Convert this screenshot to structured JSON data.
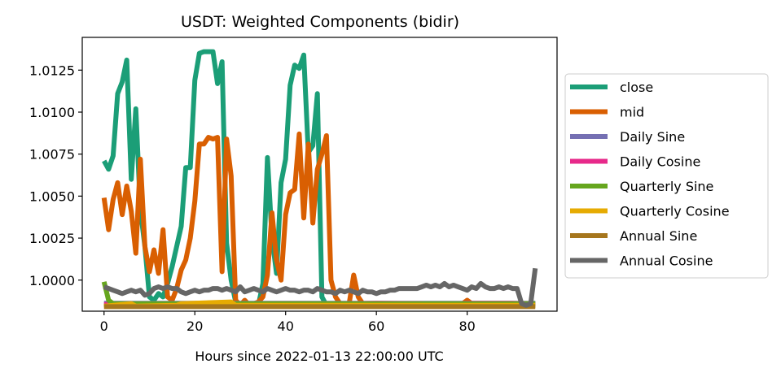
{
  "chart_data": {
    "type": "line",
    "title": "USDT: Weighted Components (bidir)",
    "xlabel": "Hours since 2022-01-13 22:00:00 UTC",
    "ylabel": "",
    "xlim": [
      -4.8,
      99.8
    ],
    "ylim": [
      0.99815,
      1.01445
    ],
    "xticks": [
      0,
      20,
      40,
      60,
      80
    ],
    "yticks": [
      1.0,
      1.0025,
      1.005,
      1.0075,
      1.01,
      1.0125
    ],
    "ytick_labels": [
      "1.0000",
      "1.0025",
      "1.0050",
      "1.0075",
      "1.0100",
      "1.0125"
    ],
    "grid": false,
    "legend_position": "right",
    "series": [
      {
        "name": "close",
        "color": "#1b9e77",
        "x": [
          0,
          1,
          2,
          3,
          4,
          5,
          6,
          7,
          8,
          9,
          10,
          11,
          12,
          13,
          14,
          15,
          16,
          17,
          18,
          19,
          20,
          21,
          22,
          23,
          24,
          25,
          26,
          27,
          28,
          29,
          30,
          31,
          32,
          33,
          34,
          35,
          36,
          37,
          38,
          39,
          40,
          41,
          42,
          43,
          44,
          45,
          46,
          47,
          48,
          49,
          50,
          51,
          52,
          53,
          54,
          55,
          56,
          57,
          58,
          59,
          60,
          61,
          62,
          63,
          64,
          65,
          66,
          67,
          68,
          69,
          70,
          71,
          72,
          73,
          74,
          75,
          76,
          77,
          78,
          79,
          80,
          81,
          82,
          83,
          84,
          85,
          86,
          87,
          88,
          89,
          90,
          91,
          92,
          93,
          94,
          95
        ],
        "values": [
          1.0071,
          1.0066,
          1.0074,
          1.0111,
          1.0118,
          1.0131,
          1.006,
          1.0102,
          1.0042,
          1.002,
          0.999,
          0.9988,
          0.9992,
          0.999,
          0.9998,
          1.0008,
          1.002,
          1.0032,
          1.0067,
          1.0067,
          1.0119,
          1.0135,
          1.0136,
          1.0136,
          1.0136,
          1.0117,
          1.013,
          1.0022,
          1.0,
          0.9987,
          0.9985,
          0.9985,
          0.9985,
          0.9985,
          0.9985,
          0.9998,
          1.0073,
          1.0025,
          1.0004,
          1.0058,
          1.0072,
          1.0116,
          1.0128,
          1.0126,
          1.0134,
          1.0076,
          1.008,
          1.0111,
          0.999,
          0.9985,
          0.9985,
          0.9985,
          0.9985,
          0.9985,
          0.9985,
          0.9985,
          0.9985,
          0.9985,
          0.9985,
          0.9985,
          0.9985,
          0.9985,
          0.9985,
          0.9985,
          0.9985,
          0.9985,
          0.9985,
          0.9985,
          0.9985,
          0.9985,
          0.9985,
          0.9985,
          0.9985,
          0.9985,
          0.9985,
          0.9985,
          0.9985,
          0.9985,
          0.9985,
          0.9985,
          0.9985,
          0.9985,
          0.9985,
          0.9985,
          0.9985,
          0.9985,
          0.9985,
          0.9985,
          0.9985,
          0.9985,
          0.9985,
          0.9985,
          0.9985,
          0.9985,
          0.9985,
          0.9985
        ]
      },
      {
        "name": "mid",
        "color": "#d95f02",
        "x": [
          0,
          1,
          2,
          3,
          4,
          5,
          6,
          7,
          8,
          9,
          10,
          11,
          12,
          13,
          14,
          15,
          16,
          17,
          18,
          19,
          20,
          21,
          22,
          23,
          24,
          25,
          26,
          27,
          28,
          29,
          30,
          31,
          32,
          33,
          34,
          35,
          36,
          37,
          38,
          39,
          40,
          41,
          42,
          43,
          44,
          45,
          46,
          47,
          48,
          49,
          50,
          51,
          52,
          53,
          54,
          55,
          56,
          57,
          58,
          59,
          60,
          61,
          62,
          63,
          64,
          65,
          66,
          67,
          68,
          69,
          70,
          71,
          72,
          73,
          74,
          75,
          76,
          77,
          78,
          79,
          80,
          81,
          82,
          83,
          84,
          85,
          86,
          87,
          88,
          89,
          90,
          91,
          92,
          93,
          94,
          95
        ],
        "values": [
          1.0049,
          1.003,
          1.0048,
          1.0058,
          1.0039,
          1.0056,
          1.0041,
          1.0016,
          1.0072,
          1.002,
          1.0005,
          1.0018,
          1.0004,
          1.003,
          0.999,
          0.9988,
          0.9995,
          1.0006,
          1.0012,
          1.0025,
          1.0047,
          1.0081,
          1.0081,
          1.0085,
          1.0084,
          1.0085,
          1.0005,
          1.0084,
          1.0062,
          0.9988,
          0.9985,
          0.9988,
          0.9985,
          0.9986,
          0.9987,
          0.999,
          1.0003,
          1.004,
          1.0012,
          1.0,
          1.0039,
          1.0052,
          1.0054,
          1.0087,
          1.0037,
          1.0081,
          1.0034,
          1.0066,
          1.0075,
          1.0086,
          1.0,
          0.999,
          0.9986,
          0.9986,
          0.9986,
          1.0003,
          0.999,
          0.9986,
          0.9986,
          0.9986,
          0.9986,
          0.9986,
          0.9986,
          0.9986,
          0.9986,
          0.9986,
          0.9986,
          0.9986,
          0.9986,
          0.9986,
          0.9986,
          0.9986,
          0.9986,
          0.9986,
          0.9986,
          0.9986,
          0.9986,
          0.9986,
          0.9986,
          0.9986,
          0.9988,
          0.9986,
          0.9986,
          0.9986,
          0.9986,
          0.9986,
          0.9986,
          0.9986,
          0.9986,
          0.9986,
          0.9986,
          0.9986,
          0.9986,
          0.9986,
          0.9986,
          0.9986
        ]
      },
      {
        "name": "Daily Sine",
        "color": "#7570b3",
        "x": [
          0,
          95
        ],
        "values": [
          0.99862,
          0.99862
        ]
      },
      {
        "name": "Daily Cosine",
        "color": "#e7298a",
        "x": [
          0,
          10,
          20,
          30,
          40,
          50,
          60,
          70,
          75,
          80,
          90,
          95
        ],
        "values": [
          0.99855,
          0.99855,
          0.9986,
          0.99858,
          0.9986,
          0.99858,
          0.99862,
          0.9986,
          0.9985,
          0.99862,
          0.99862,
          0.99858
        ]
      },
      {
        "name": "Quarterly Sine",
        "color": "#66a61e",
        "x": [
          0,
          1,
          2,
          95
        ],
        "values": [
          0.9999,
          0.9988,
          0.9986,
          0.9986
        ]
      },
      {
        "name": "Quarterly Cosine",
        "color": "#e6ab02",
        "x": [
          0,
          6,
          7,
          16,
          17,
          28,
          29,
          95
        ],
        "values": [
          0.99845,
          0.9986,
          0.99845,
          0.9985,
          0.9986,
          0.9987,
          0.9985,
          0.9985
        ]
      },
      {
        "name": "Annual Sine",
        "color": "#a6761d",
        "x": [
          0,
          95
        ],
        "values": [
          0.99842,
          0.99842
        ]
      },
      {
        "name": "Annual Cosine",
        "color": "#666666",
        "x": [
          0,
          1,
          2,
          3,
          4,
          5,
          6,
          7,
          8,
          9,
          10,
          11,
          12,
          13,
          14,
          15,
          16,
          17,
          18,
          19,
          20,
          21,
          22,
          23,
          24,
          25,
          26,
          27,
          28,
          29,
          30,
          31,
          32,
          33,
          34,
          35,
          36,
          37,
          38,
          39,
          40,
          41,
          42,
          43,
          44,
          45,
          46,
          47,
          48,
          49,
          50,
          51,
          52,
          53,
          54,
          55,
          56,
          57,
          58,
          59,
          60,
          61,
          62,
          63,
          64,
          65,
          66,
          67,
          68,
          69,
          70,
          71,
          72,
          73,
          74,
          75,
          76,
          77,
          78,
          79,
          80,
          81,
          82,
          83,
          84,
          85,
          86,
          87,
          88,
          89,
          90,
          91,
          92,
          93,
          94,
          95
        ],
        "values": [
          0.9996,
          0.9995,
          0.9994,
          0.9993,
          0.9992,
          0.9993,
          0.9994,
          0.9993,
          0.9994,
          0.9991,
          0.9992,
          0.9995,
          0.9996,
          0.9995,
          0.9996,
          0.9995,
          0.9995,
          0.9993,
          0.9992,
          0.9993,
          0.9994,
          0.9993,
          0.9994,
          0.9994,
          0.9995,
          0.9995,
          0.9994,
          0.9995,
          0.9994,
          0.9993,
          0.9996,
          0.9993,
          0.9994,
          0.9995,
          0.9994,
          0.9993,
          0.9995,
          0.9994,
          0.9993,
          0.9994,
          0.9995,
          0.9994,
          0.9994,
          0.9993,
          0.9994,
          0.9994,
          0.9993,
          0.9995,
          0.9994,
          0.9993,
          0.9993,
          0.9992,
          0.9994,
          0.9993,
          0.9994,
          0.9993,
          0.9992,
          0.9994,
          0.9993,
          0.9993,
          0.9992,
          0.9993,
          0.9993,
          0.9994,
          0.9994,
          0.9995,
          0.9995,
          0.9995,
          0.9995,
          0.9995,
          0.9996,
          0.9997,
          0.9996,
          0.9997,
          0.9996,
          0.9998,
          0.9996,
          0.9997,
          0.9996,
          0.9995,
          0.9994,
          0.9996,
          0.9995,
          0.9998,
          0.9996,
          0.9995,
          0.9995,
          0.9996,
          0.9995,
          0.9996,
          0.9995,
          0.9995,
          0.9986,
          0.9985,
          0.9986,
          1.0007
        ]
      }
    ]
  }
}
